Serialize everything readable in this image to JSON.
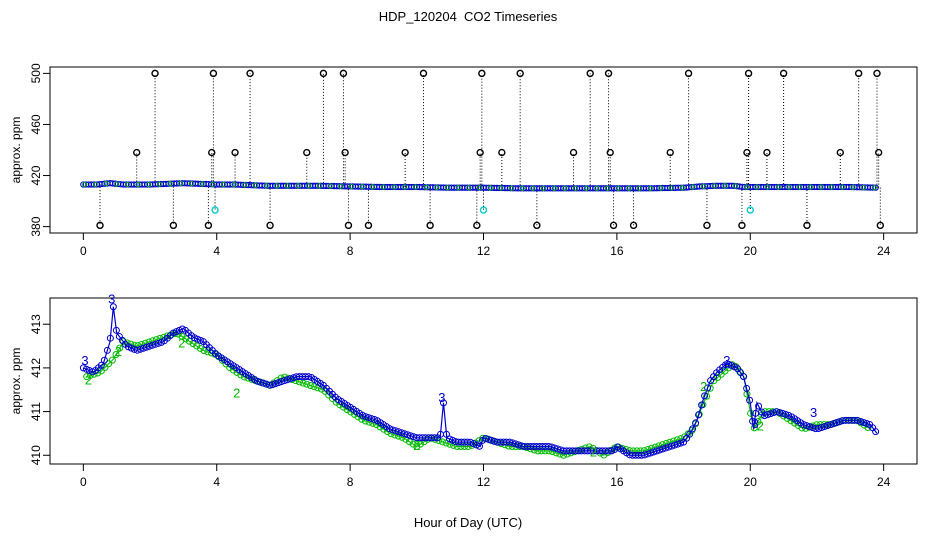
{
  "title": "HDP_120204  CO2 Timeseries",
  "xlabel": "Hour of Day (UTC)",
  "colors": {
    "axis": "#000000",
    "series_blue": "#0000cc",
    "series_green": "#00bb00",
    "flag_cyan": "#00cccc",
    "pin": "#000000"
  },
  "chart_data": [
    {
      "type": "scatter",
      "panel": "top",
      "ylabel": "approx. ppm",
      "xlim": [
        -1,
        25
      ],
      "ylim": [
        375,
        505
      ],
      "xticks": [
        "0",
        "4",
        "8",
        "12",
        "16",
        "20",
        "24"
      ],
      "yticks": [
        "380",
        "420",
        "460",
        "500"
      ],
      "baseline": {
        "x": [
          0,
          0.4,
          0.8,
          1.2,
          1.6,
          2.0,
          2.5,
          3.0,
          3.5,
          4.0,
          4.5,
          5.0,
          5.5,
          6.0,
          7.0,
          8.0,
          9.0,
          10.0,
          11.0,
          12.0,
          13.0,
          14.0,
          15.0,
          16.0,
          17.0,
          18.0,
          18.5,
          19.0,
          19.5,
          19.8,
          20.0,
          20.5,
          21.0,
          22.0,
          23.0,
          23.8
        ],
        "y": [
          413,
          413,
          414,
          413,
          413,
          413,
          413.5,
          414,
          413.5,
          413,
          413,
          412.5,
          412,
          412,
          412,
          411.5,
          411,
          411,
          410.5,
          410.5,
          410,
          410,
          410,
          410,
          410,
          410.5,
          411.5,
          412,
          412,
          411,
          411,
          411,
          411,
          411,
          411,
          410.5
        ]
      },
      "spikes_high": [
        2.15,
        3.9,
        5.0,
        7.2,
        7.8,
        10.2,
        11.95,
        13.1,
        15.2,
        15.75,
        18.15,
        19.95,
        21.0,
        23.25,
        23.8
      ],
      "spikes_mid": [
        1.6,
        3.85,
        4.55,
        6.7,
        7.85,
        9.65,
        11.9,
        12.55,
        14.7,
        15.8,
        17.6,
        19.9,
        20.5,
        22.7,
        23.85
      ],
      "spikes_low": [
        0.5,
        2.7,
        3.75,
        5.6,
        7.95,
        8.55,
        10.4,
        11.8,
        13.6,
        15.9,
        16.5,
        18.7,
        19.75,
        21.7,
        23.9
      ],
      "flags_cyan": [
        {
          "x": 3.95,
          "y": 393
        },
        {
          "x": 12.0,
          "y": 393
        },
        {
          "x": 20.0,
          "y": 393
        }
      ]
    },
    {
      "type": "line",
      "panel": "bottom",
      "ylabel": "approx. ppm",
      "xlim": [
        -1,
        25
      ],
      "ylim": [
        409.8,
        413.6
      ],
      "xticks": [
        "0",
        "4",
        "8",
        "12",
        "16",
        "20",
        "24"
      ],
      "yticks": [
        "410",
        "411",
        "412",
        "413"
      ],
      "series": [
        {
          "name": "blue",
          "x": [
            0,
            0.3,
            0.6,
            0.8,
            0.9,
            1.0,
            1.3,
            1.6,
            2.0,
            2.4,
            2.7,
            3.0,
            3.3,
            3.6,
            4.0,
            4.4,
            4.8,
            5.2,
            5.6,
            6.0,
            6.4,
            6.8,
            7.2,
            7.6,
            8.0,
            8.4,
            8.8,
            9.2,
            9.6,
            10.0,
            10.4,
            10.7,
            10.8,
            10.9,
            11.2,
            11.6,
            11.9,
            12.0,
            12.4,
            12.8,
            13.2,
            13.6,
            14.0,
            14.4,
            14.8,
            15.2,
            15.6,
            15.9,
            16.0,
            16.4,
            16.8,
            17.2,
            17.6,
            18.0,
            18.2,
            18.4,
            18.6,
            18.8,
            19.0,
            19.3,
            19.6,
            19.8,
            20.0,
            20.1,
            20.2,
            20.4,
            20.8,
            21.2,
            21.6,
            22.0,
            22.4,
            22.8,
            23.2,
            23.6,
            23.8
          ],
          "y": [
            412.0,
            411.9,
            412.1,
            412.6,
            413.4,
            412.8,
            412.5,
            412.4,
            412.5,
            412.6,
            412.8,
            412.9,
            412.7,
            412.6,
            412.3,
            412.1,
            411.9,
            411.7,
            411.6,
            411.7,
            411.8,
            411.8,
            411.6,
            411.3,
            411.1,
            410.9,
            410.8,
            410.6,
            410.5,
            410.4,
            410.4,
            410.4,
            411.2,
            410.4,
            410.3,
            410.3,
            410.2,
            410.4,
            410.3,
            410.3,
            410.2,
            410.2,
            410.2,
            410.1,
            410.1,
            410.1,
            410.1,
            410.1,
            410.2,
            410.0,
            410.0,
            410.1,
            410.2,
            410.3,
            410.5,
            410.8,
            411.3,
            411.7,
            411.9,
            412.1,
            412.0,
            411.8,
            411.2,
            410.6,
            411.2,
            410.9,
            411.0,
            410.9,
            410.7,
            410.6,
            410.7,
            410.8,
            410.8,
            410.7,
            410.5
          ]
        },
        {
          "name": "green",
          "x": [
            0.1,
            0.5,
            0.9,
            1.2,
            1.6,
            2.0,
            2.4,
            2.8,
            3.2,
            3.6,
            4.0,
            4.4,
            4.8,
            5.2,
            5.6,
            6.0,
            6.4,
            6.8,
            7.2,
            7.6,
            8.0,
            8.4,
            8.8,
            9.2,
            9.6,
            10.0,
            10.4,
            10.8,
            11.2,
            11.6,
            12.0,
            12.4,
            12.8,
            13.2,
            13.6,
            14.0,
            14.4,
            14.8,
            15.2,
            15.6,
            16.0,
            16.4,
            16.8,
            17.2,
            17.6,
            18.0,
            18.3,
            18.6,
            18.9,
            19.2,
            19.5,
            19.8,
            20.1,
            20.4,
            20.8,
            21.2,
            21.6,
            22.0,
            22.4,
            22.8,
            23.2,
            23.6
          ],
          "y": [
            411.8,
            411.9,
            412.2,
            412.6,
            412.5,
            412.6,
            412.7,
            412.8,
            412.6,
            412.4,
            412.3,
            412.0,
            411.8,
            411.7,
            411.6,
            411.8,
            411.7,
            411.6,
            411.5,
            411.2,
            411.0,
            410.8,
            410.7,
            410.5,
            410.4,
            410.2,
            410.4,
            410.3,
            410.2,
            410.2,
            410.4,
            410.3,
            410.2,
            410.2,
            410.1,
            410.1,
            410.0,
            410.1,
            410.2,
            410.0,
            410.2,
            410.1,
            410.1,
            410.2,
            410.3,
            410.4,
            410.6,
            411.2,
            411.7,
            411.9,
            412.1,
            411.8,
            410.6,
            411.0,
            411.0,
            410.8,
            410.6,
            410.7,
            410.7,
            410.8,
            410.8,
            410.6
          ]
        }
      ],
      "label_glyphs": [
        {
          "text": "3",
          "x": 0.05,
          "y": 412.15,
          "series": "blue"
        },
        {
          "text": "3",
          "x": 0.85,
          "y": 413.55,
          "series": "blue"
        },
        {
          "text": "3",
          "x": 10.75,
          "y": 411.3,
          "series": "blue"
        },
        {
          "text": "3",
          "x": 20.15,
          "y": 410.7,
          "series": "blue"
        },
        {
          "text": "3",
          "x": 21.9,
          "y": 410.95,
          "series": "blue"
        },
        {
          "text": "3",
          "x": 19.3,
          "y": 412.15,
          "series": "blue"
        },
        {
          "text": "2",
          "x": 0.15,
          "y": 411.7,
          "series": "green"
        },
        {
          "text": "2",
          "x": 1.05,
          "y": 412.35,
          "series": "green"
        },
        {
          "text": "2",
          "x": 2.95,
          "y": 412.55,
          "series": "green"
        },
        {
          "text": "2",
          "x": 4.6,
          "y": 411.4,
          "series": "green"
        },
        {
          "text": "2",
          "x": 10.0,
          "y": 410.2,
          "series": "green"
        },
        {
          "text": "2",
          "x": 15.3,
          "y": 410.05,
          "series": "green"
        },
        {
          "text": "2",
          "x": 18.6,
          "y": 411.55,
          "series": "green"
        },
        {
          "text": "2",
          "x": 20.3,
          "y": 410.65,
          "series": "green"
        }
      ]
    }
  ]
}
